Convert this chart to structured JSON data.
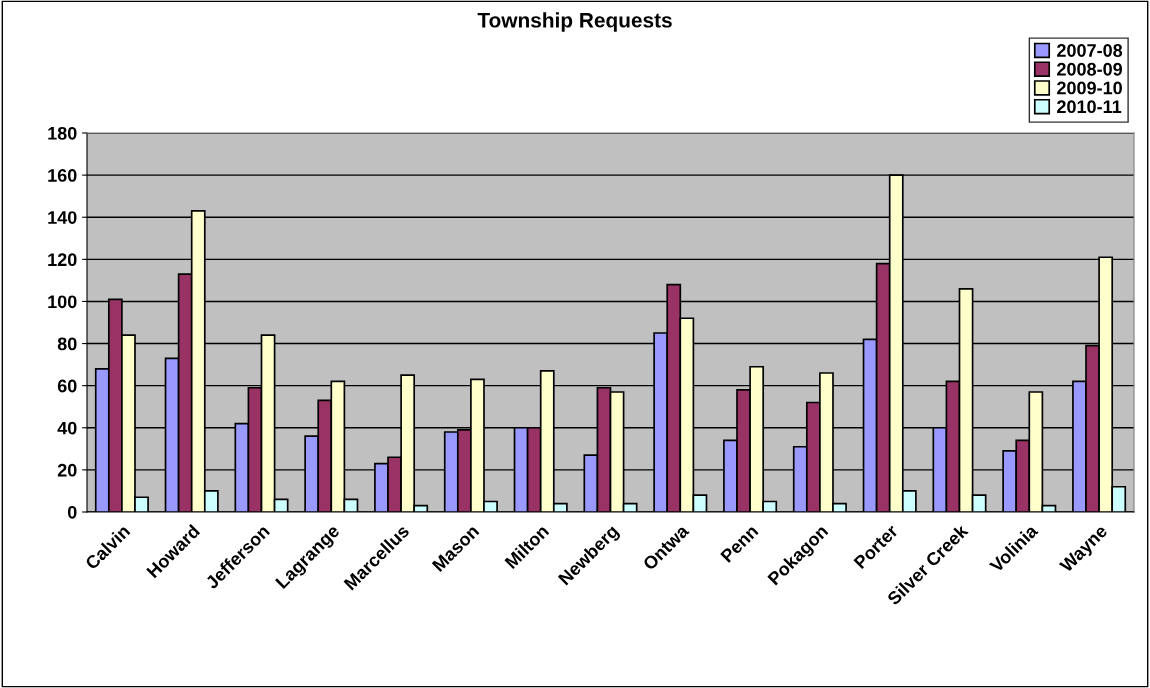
{
  "chart_data": {
    "type": "bar",
    "title": "Township Requests",
    "categories": [
      "Calvin",
      "Howard",
      "Jefferson",
      "Lagrange",
      "Marcellus",
      "Mason",
      "Milton",
      "Newberg",
      "Ontwa",
      "Penn",
      "Pokagon",
      "Porter",
      "Silver Creek",
      "Volinia",
      "Wayne"
    ],
    "series": [
      {
        "name": "2007-08",
        "color": "#9999ff",
        "values": [
          68,
          73,
          42,
          36,
          23,
          38,
          40,
          27,
          85,
          34,
          31,
          82,
          40,
          29,
          62
        ]
      },
      {
        "name": "2008-09",
        "color": "#993366",
        "values": [
          101,
          113,
          59,
          53,
          26,
          39,
          40,
          59,
          108,
          58,
          52,
          118,
          62,
          34,
          79
        ]
      },
      {
        "name": "2009-10",
        "color": "#ffffcc",
        "values": [
          84,
          143,
          84,
          62,
          65,
          63,
          67,
          57,
          92,
          69,
          66,
          160,
          106,
          57,
          121
        ]
      },
      {
        "name": "2010-11",
        "color": "#ccffff",
        "values": [
          7,
          10,
          6,
          6,
          3,
          5,
          4,
          4,
          8,
          5,
          4,
          10,
          8,
          3,
          12
        ]
      }
    ],
    "ylim": [
      0,
      180
    ],
    "yticks": [
      0,
      20,
      40,
      60,
      80,
      100,
      120,
      140,
      160,
      180
    ],
    "grid": "y",
    "legend": "top right"
  }
}
